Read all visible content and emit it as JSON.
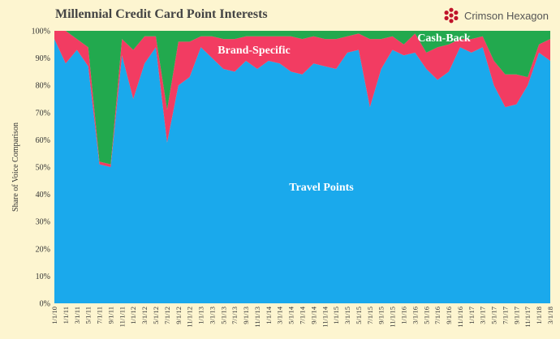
{
  "chart_data": {
    "type": "area",
    "stacked": true,
    "normalized": true,
    "title": "Millennial Credit Card Point Interests",
    "ylabel": "Share of Voice Comparison",
    "ylim": [
      0,
      100
    ],
    "ytick_labels": [
      "0%",
      "10%",
      "20%",
      "30%",
      "40%",
      "50%",
      "60%",
      "70%",
      "80%",
      "90%",
      "100%"
    ],
    "x": [
      "1/1/10",
      "1/1/11",
      "3/1/11",
      "5/1/11",
      "7/1/11",
      "9/1/11",
      "11/1/11",
      "1/1/12",
      "3/1/12",
      "5/1/12",
      "7/1/12",
      "9/1/12",
      "11/1/12",
      "1/1/13",
      "3/1/13",
      "5/1/13",
      "7/1/13",
      "9/1/13",
      "11/1/13",
      "1/1/14",
      "3/1/14",
      "5/1/14",
      "7/1/14",
      "9/1/14",
      "11/1/14",
      "1/1/15",
      "3/1/15",
      "5/1/15",
      "7/1/15",
      "9/1/15",
      "11/1/15",
      "1/1/16",
      "3/1/16",
      "5/1/16",
      "7/1/16",
      "9/1/16",
      "11/1/16",
      "1/1/17",
      "3/1/17",
      "5/1/17",
      "7/1/17",
      "9/1/17",
      "11/1/17",
      "1/1/18",
      "3/1/18"
    ],
    "series": [
      {
        "name": "Travel Points",
        "color": "#1aa9ec",
        "values": [
          97,
          88,
          93,
          87,
          51,
          50,
          91,
          75,
          88,
          94,
          59,
          80,
          83,
          94,
          90,
          86,
          85,
          89,
          86,
          89,
          88,
          85,
          84,
          88,
          87,
          86,
          92,
          93,
          72,
          86,
          93,
          91,
          92,
          86,
          82,
          85,
          94,
          92,
          94,
          80,
          72,
          73,
          80,
          92,
          89
        ]
      },
      {
        "name": "Brand-Specific",
        "color": "#f23c62",
        "values": [
          3,
          12,
          4,
          7,
          1,
          1,
          6,
          18,
          10,
          4,
          12,
          16,
          13,
          4,
          8,
          11,
          12,
          9,
          12,
          9,
          10,
          13,
          13,
          10,
          10,
          11,
          6,
          6,
          25,
          11,
          5,
          4,
          7,
          6,
          12,
          10,
          3,
          5,
          4,
          9,
          12,
          11,
          3,
          3,
          8
        ]
      },
      {
        "name": "Cash-Back",
        "color": "#22a94e",
        "values": [
          0,
          0,
          3,
          6,
          48,
          49,
          3,
          7,
          2,
          2,
          29,
          4,
          4,
          2,
          2,
          3,
          3,
          2,
          2,
          2,
          2,
          2,
          3,
          2,
          3,
          3,
          2,
          1,
          3,
          3,
          2,
          5,
          1,
          8,
          6,
          5,
          3,
          3,
          2,
          11,
          16,
          16,
          17,
          5,
          3
        ]
      }
    ],
    "annotations": [
      "Travel Points",
      "Brand-Specific",
      "Cash-Back"
    ],
    "grid": false,
    "legend": "none"
  },
  "branding": {
    "name": "Crimson Hexagon",
    "accent": "#c0142b"
  }
}
